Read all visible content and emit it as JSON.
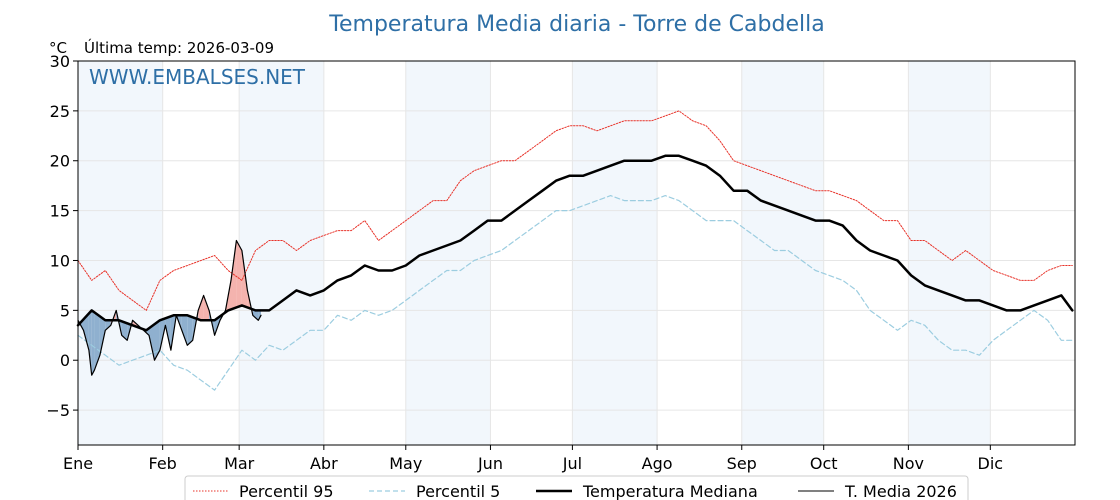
{
  "chart_data": {
    "type": "line",
    "title": "Temperatura Media diaria - Torre de Cabdella",
    "unit": "°C",
    "subtitle": "Última temp: 2026-03-09",
    "watermark": "WWW.EMBALSES.NET",
    "ylim": [
      -8.5,
      30
    ],
    "yticks": [
      30,
      25,
      20,
      15,
      10,
      5,
      0,
      -5
    ],
    "ytick_labels": [
      "30",
      "25",
      "20",
      "15",
      "10",
      "5",
      "0",
      "−5"
    ],
    "months": [
      "Ene",
      "Feb",
      "Mar",
      "Abr",
      "May",
      "Jun",
      "Jul",
      "Ago",
      "Sep",
      "Oct",
      "Nov",
      "Dic"
    ],
    "month_start_days": [
      0,
      31,
      59,
      90,
      120,
      151,
      181,
      212,
      243,
      273,
      304,
      334
    ],
    "days_in_year": 365,
    "grid": true,
    "legend_position": "bottom",
    "series": [
      {
        "name": "Percentil 95",
        "color": "#e8332a",
        "style": "dotted",
        "x": [
          0,
          5,
          10,
          15,
          20,
          25,
          30,
          35,
          40,
          45,
          50,
          55,
          60,
          65,
          70,
          75,
          80,
          85,
          90,
          95,
          100,
          105,
          110,
          115,
          120,
          125,
          130,
          135,
          140,
          145,
          150,
          155,
          160,
          165,
          170,
          175,
          180,
          185,
          190,
          195,
          200,
          205,
          210,
          215,
          220,
          225,
          230,
          235,
          240,
          245,
          250,
          255,
          260,
          265,
          270,
          275,
          280,
          285,
          290,
          295,
          300,
          305,
          310,
          315,
          320,
          325,
          330,
          335,
          340,
          345,
          350,
          355,
          360,
          364
        ],
        "values": [
          10,
          8,
          9,
          7,
          6,
          5,
          8,
          9,
          9.5,
          10,
          10.5,
          9,
          8,
          11,
          12,
          12,
          11,
          12,
          12.5,
          13,
          13,
          14,
          12,
          13,
          14,
          15,
          16,
          16,
          18,
          19,
          19.5,
          20,
          20,
          21,
          22,
          23,
          23.5,
          23.5,
          23,
          23.5,
          24,
          24,
          24,
          24.5,
          25,
          24,
          23.5,
          22,
          20,
          19.5,
          19,
          18.5,
          18,
          17.5,
          17,
          17,
          16.5,
          16,
          15,
          14,
          14,
          12,
          12,
          11,
          10,
          11,
          10,
          9,
          8.5,
          8,
          8,
          9,
          9.5,
          9.5
        ]
      },
      {
        "name": "Percentil 5",
        "color": "#9ccde0",
        "style": "dashed",
        "x": [
          0,
          5,
          10,
          15,
          20,
          25,
          30,
          35,
          40,
          45,
          50,
          55,
          60,
          65,
          70,
          75,
          80,
          85,
          90,
          95,
          100,
          105,
          110,
          115,
          120,
          125,
          130,
          135,
          140,
          145,
          150,
          155,
          160,
          165,
          170,
          175,
          180,
          185,
          190,
          195,
          200,
          205,
          210,
          215,
          220,
          225,
          230,
          235,
          240,
          245,
          250,
          255,
          260,
          265,
          270,
          275,
          280,
          285,
          290,
          295,
          300,
          305,
          310,
          315,
          320,
          325,
          330,
          335,
          340,
          345,
          350,
          355,
          360,
          364
        ],
        "values": [
          2.5,
          1.5,
          0.5,
          -0.5,
          0,
          0.5,
          1,
          -0.5,
          -1,
          -2,
          -3,
          -1,
          1,
          0,
          1.5,
          1,
          2,
          3,
          3,
          4.5,
          4,
          5,
          4.5,
          5,
          6,
          7,
          8,
          9,
          9,
          10,
          10.5,
          11,
          12,
          13,
          14,
          15,
          15,
          15.5,
          16,
          16.5,
          16,
          16,
          16,
          16.5,
          16,
          15,
          14,
          14,
          14,
          13,
          12,
          11,
          11,
          10,
          9,
          8.5,
          8,
          7,
          5,
          4,
          3,
          4,
          3.5,
          2,
          1,
          1,
          0.5,
          2,
          3,
          4,
          5,
          4,
          2,
          2
        ]
      },
      {
        "name": "Temperatura Mediana",
        "color": "#000000",
        "style": "solid-thick",
        "x": [
          0,
          5,
          10,
          15,
          20,
          25,
          30,
          35,
          40,
          45,
          50,
          55,
          60,
          65,
          70,
          75,
          80,
          85,
          90,
          95,
          100,
          105,
          110,
          115,
          120,
          125,
          130,
          135,
          140,
          145,
          150,
          155,
          160,
          165,
          170,
          175,
          180,
          185,
          190,
          195,
          200,
          205,
          210,
          215,
          220,
          225,
          230,
          235,
          240,
          245,
          250,
          255,
          260,
          265,
          270,
          275,
          280,
          285,
          290,
          295,
          300,
          305,
          310,
          315,
          320,
          325,
          330,
          335,
          340,
          345,
          350,
          355,
          360,
          364
        ],
        "values": [
          3.5,
          5,
          4,
          4,
          3.5,
          3,
          4,
          4.5,
          4.5,
          4,
          4,
          5,
          5.5,
          5,
          5,
          6,
          7,
          6.5,
          7,
          8,
          8.5,
          9.5,
          9,
          9,
          9.5,
          10.5,
          11,
          11.5,
          12,
          13,
          14,
          14,
          15,
          16,
          17,
          18,
          18.5,
          18.5,
          19,
          19.5,
          20,
          20,
          20,
          20.5,
          20.5,
          20,
          19.5,
          18.5,
          17,
          17,
          16,
          15.5,
          15,
          14.5,
          14,
          14,
          13.5,
          12,
          11,
          10.5,
          10,
          8.5,
          7.5,
          7,
          6.5,
          6,
          6,
          5.5,
          5,
          5,
          5.5,
          6,
          6.5,
          5
        ]
      },
      {
        "name": "T. Media 2026",
        "color": "#000000",
        "style": "solid-thin",
        "x": [
          0,
          2,
          4,
          5,
          6,
          8,
          10,
          12,
          14,
          16,
          18,
          20,
          22,
          24,
          26,
          28,
          30,
          32,
          34,
          36,
          38,
          40,
          42,
          44,
          46,
          48,
          50,
          52,
          54,
          56,
          58,
          60,
          62,
          64,
          66,
          67
        ],
        "values": [
          4,
          3,
          1,
          -1.5,
          -1,
          0.5,
          3,
          3.5,
          5,
          2.5,
          2,
          4,
          3.5,
          3,
          2.5,
          0,
          1,
          3.5,
          1,
          4.5,
          3,
          1.5,
          2,
          5,
          6.5,
          5,
          2.5,
          4,
          5,
          8,
          12,
          11,
          7,
          4.5,
          4,
          4.5
        ]
      }
    ]
  }
}
